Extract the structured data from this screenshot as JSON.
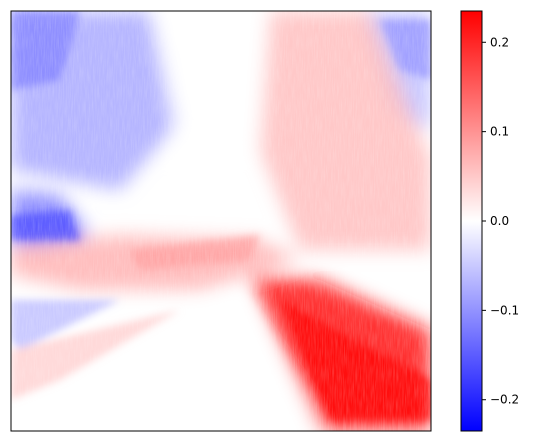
{
  "chart_data": {
    "type": "heatmap",
    "title": "",
    "xlabel": "",
    "ylabel": "",
    "colormap": "bwr",
    "colormap_colors": [
      "#0000ff",
      "#ffffff",
      "#ff0000"
    ],
    "vmin": -0.235,
    "vmax": 0.235,
    "axes_ticks_visible": false,
    "colorbar": {
      "position": "right",
      "ticks": [
        -0.2,
        -0.1,
        0.0,
        0.1,
        0.2
      ],
      "tick_labels": [
        "−0.2",
        "−0.1",
        "0.0",
        "0.1",
        "0.2"
      ]
    },
    "regions": [
      {
        "name": "upper-left",
        "approx_value": -0.08
      },
      {
        "name": "upper-center",
        "approx_value": 0.0
      },
      {
        "name": "upper-right",
        "approx_value": -0.06
      },
      {
        "name": "center-right",
        "approx_value": 0.06
      },
      {
        "name": "left-middle",
        "approx_value": -0.12
      },
      {
        "name": "horizon-band",
        "approx_value": 0.07
      },
      {
        "name": "bottom-center",
        "approx_value": 0.0
      },
      {
        "name": "bottom-right",
        "approx_value": 0.22
      }
    ]
  }
}
